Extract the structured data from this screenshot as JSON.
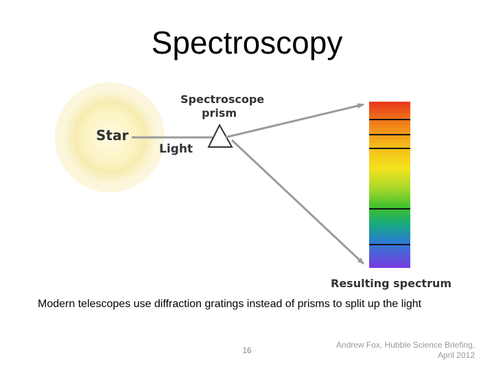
{
  "slide": {
    "title": "Spectroscopy",
    "caption": "Modern telescopes use diffraction gratings instead of prisms to split up the light",
    "slide_number": "16",
    "footer_line1": "Andrew Fox, Hubble Science Briefing,",
    "footer_line2": "April 2012"
  },
  "diagram": {
    "star_label": "Star",
    "light_label": "Light",
    "prism_label_line1": "Spectroscope",
    "prism_label_line2": "prism",
    "spectrum_label": "Resulting spectrum",
    "colors": {
      "star_core": "#fdf3c8",
      "star_glow": "#f5efb8",
      "ray": "#9a9a9a",
      "spectrum": [
        "#e8361a",
        "#f07a1a",
        "#f5b81a",
        "#f3e21c",
        "#a8d82a",
        "#3cbf2e",
        "#18a882",
        "#2a7ed0",
        "#5a3fd6",
        "#7a3ce0"
      ]
    }
  }
}
